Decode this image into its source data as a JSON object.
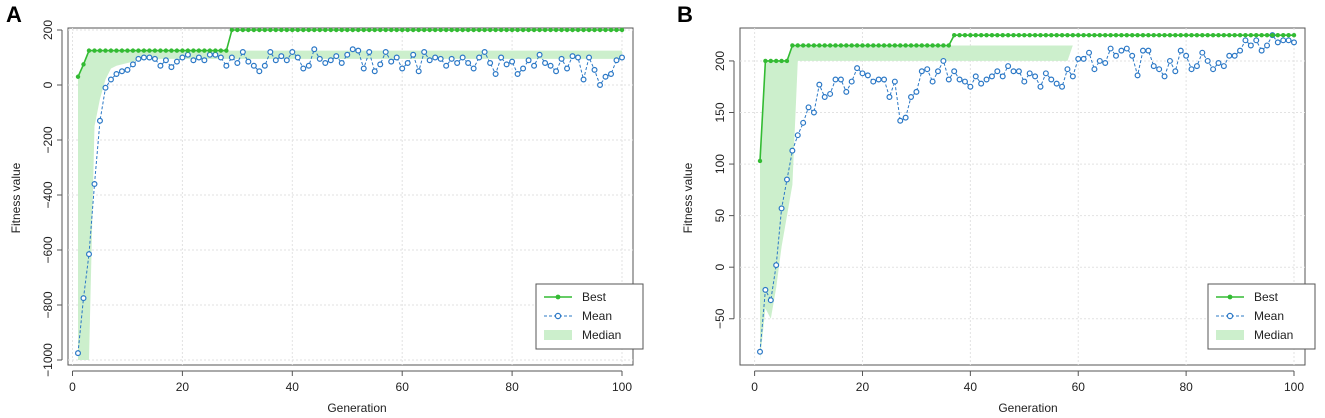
{
  "chart_data": [
    {
      "panel": "A",
      "type": "line",
      "xlabel": "Generation",
      "ylabel": "Fitness value",
      "xlim": [
        1,
        100
      ],
      "ylim": [
        -1000,
        200
      ],
      "xticks": [
        0,
        20,
        40,
        60,
        80,
        100
      ],
      "yticks": [
        -1000,
        -800,
        -600,
        -400,
        -200,
        0,
        200
      ],
      "grid": true,
      "legend_position": "bottom-right",
      "legend": [
        "Best",
        "Mean",
        "Median"
      ],
      "colors": {
        "best": "#33bb33",
        "mean": "#2b78c6",
        "median_fill": "#ccefcc"
      },
      "series": [
        {
          "name": "Best",
          "values": [
            30,
            75,
            125,
            125,
            125,
            125,
            125,
            125,
            125,
            125,
            125,
            125,
            125,
            125,
            125,
            125,
            125,
            125,
            125,
            125,
            125,
            125,
            125,
            125,
            125,
            125,
            125,
            125,
            200,
            200,
            200,
            200,
            200,
            200,
            200,
            200,
            200,
            200,
            200,
            200,
            200,
            200,
            200,
            200,
            200,
            200,
            200,
            200,
            200,
            200,
            200,
            200,
            200,
            200,
            200,
            200,
            200,
            200,
            200,
            200,
            200,
            200,
            200,
            200,
            200,
            200,
            200,
            200,
            200,
            200,
            200,
            200,
            200,
            200,
            200,
            200,
            200,
            200,
            200,
            200,
            200,
            200,
            200,
            200,
            200,
            200,
            200,
            200,
            200,
            200,
            200,
            200,
            200,
            200,
            200,
            200,
            200,
            200,
            200,
            200
          ]
        },
        {
          "name": "Mean",
          "values": [
            -975,
            -775,
            -615,
            -360,
            -130,
            -10,
            20,
            40,
            50,
            55,
            75,
            95,
            100,
            100,
            95,
            70,
            90,
            65,
            85,
            100,
            110,
            90,
            100,
            90,
            110,
            110,
            100,
            70,
            100,
            80,
            120,
            85,
            70,
            50,
            70,
            120,
            90,
            105,
            90,
            120,
            100,
            60,
            70,
            130,
            95,
            80,
            90,
            105,
            80,
            110,
            130,
            125,
            60,
            120,
            50,
            75,
            120,
            85,
            100,
            60,
            80,
            110,
            50,
            120,
            90,
            100,
            95,
            70,
            95,
            80,
            100,
            80,
            60,
            100,
            120,
            80,
            40,
            100,
            75,
            85,
            40,
            60,
            90,
            70,
            110,
            80,
            70,
            50,
            95,
            60,
            105,
            100,
            20,
            100,
            55,
            0,
            30,
            40,
            90,
            100
          ]
        },
        {
          "name": "Median",
          "band_low": [
            -1000,
            -1000,
            -1000,
            -150,
            -50,
            20,
            60,
            70,
            75,
            80,
            85,
            90,
            95,
            95,
            95,
            95,
            95,
            95,
            95,
            95,
            95,
            95,
            95,
            95,
            95,
            95,
            95,
            95,
            95,
            95,
            95,
            95,
            95,
            95,
            95,
            95,
            95,
            95,
            95,
            95,
            95,
            95,
            95,
            95,
            95,
            95,
            95,
            95,
            95,
            95,
            95,
            95,
            95,
            95,
            95,
            95,
            95,
            95,
            95,
            95,
            95,
            95,
            95,
            95,
            95,
            95,
            95,
            95,
            95,
            95,
            95,
            95,
            95,
            95,
            95,
            95,
            95,
            95,
            95,
            95,
            95,
            95,
            95,
            95,
            95,
            95,
            95,
            95,
            95,
            95,
            95,
            95,
            95,
            95,
            95,
            95,
            95,
            95,
            95,
            95
          ],
          "band_high": [
            30,
            75,
            125,
            125,
            125,
            125,
            125,
            125,
            125,
            125,
            125,
            125,
            125,
            125,
            125,
            125,
            125,
            125,
            125,
            125,
            125,
            125,
            125,
            125,
            125,
            125,
            125,
            125,
            125,
            125,
            125,
            125,
            125,
            125,
            125,
            125,
            125,
            125,
            125,
            125,
            125,
            125,
            125,
            125,
            125,
            125,
            125,
            125,
            125,
            125,
            125,
            125,
            125,
            125,
            125,
            125,
            125,
            125,
            125,
            125,
            125,
            125,
            125,
            125,
            125,
            125,
            125,
            125,
            125,
            125,
            125,
            125,
            125,
            125,
            125,
            125,
            125,
            125,
            125,
            125,
            125,
            125,
            125,
            125,
            125,
            125,
            125,
            125,
            125,
            125,
            125,
            125,
            125,
            125,
            125,
            125,
            125,
            125,
            125,
            125
          ]
        }
      ]
    },
    {
      "panel": "B",
      "type": "line",
      "xlabel": "Generation",
      "ylabel": "Fitness value",
      "xlim": [
        1,
        100
      ],
      "ylim": [
        -90,
        230
      ],
      "xticks": [
        0,
        20,
        40,
        60,
        80,
        100
      ],
      "yticks": [
        -50,
        0,
        50,
        100,
        150,
        200
      ],
      "grid": true,
      "legend_position": "bottom-right",
      "legend": [
        "Best",
        "Mean",
        "Median"
      ],
      "colors": {
        "best": "#33bb33",
        "mean": "#2b78c6",
        "median_fill": "#ccefcc"
      },
      "series": [
        {
          "name": "Best",
          "values": [
            103,
            200,
            200,
            200,
            200,
            200,
            215,
            215,
            215,
            215,
            215,
            215,
            215,
            215,
            215,
            215,
            215,
            215,
            215,
            215,
            215,
            215,
            215,
            215,
            215,
            215,
            215,
            215,
            215,
            215,
            215,
            215,
            215,
            215,
            215,
            215,
            225,
            225,
            225,
            225,
            225,
            225,
            225,
            225,
            225,
            225,
            225,
            225,
            225,
            225,
            225,
            225,
            225,
            225,
            225,
            225,
            225,
            225,
            225,
            225,
            225,
            225,
            225,
            225,
            225,
            225,
            225,
            225,
            225,
            225,
            225,
            225,
            225,
            225,
            225,
            225,
            225,
            225,
            225,
            225,
            225,
            225,
            225,
            225,
            225,
            225,
            225,
            225,
            225,
            225,
            225,
            225,
            225,
            225,
            225,
            225,
            225,
            225,
            225,
            225
          ]
        },
        {
          "name": "Mean",
          "values": [
            -82,
            -22,
            -32,
            2,
            57,
            85,
            113,
            128,
            140,
            155,
            150,
            177,
            165,
            168,
            182,
            182,
            170,
            180,
            193,
            188,
            186,
            180,
            182,
            182,
            165,
            180,
            142,
            145,
            165,
            170,
            190,
            192,
            180,
            190,
            200,
            182,
            190,
            182,
            180,
            175,
            185,
            178,
            182,
            185,
            190,
            185,
            195,
            190,
            190,
            180,
            188,
            185,
            175,
            188,
            182,
            178,
            175,
            192,
            185,
            202,
            202,
            208,
            192,
            200,
            198,
            212,
            205,
            210,
            212,
            205,
            186,
            210,
            210,
            195,
            192,
            185,
            200,
            190,
            210,
            205,
            192,
            195,
            208,
            200,
            192,
            198,
            195,
            205,
            205,
            210,
            220,
            215,
            220,
            210,
            215,
            225,
            218,
            220,
            220,
            218
          ]
        },
        {
          "name": "Median",
          "band_low": [
            -90,
            -40,
            -50,
            -20,
            20,
            50,
            80,
            200,
            200,
            200,
            200,
            200,
            200,
            200,
            200,
            200,
            200,
            200,
            200,
            200,
            200,
            200,
            200,
            200,
            200,
            200,
            200,
            200,
            200,
            200,
            200,
            200,
            200,
            200,
            200,
            200,
            200,
            200,
            200,
            200,
            200,
            200,
            200,
            200,
            200,
            200,
            200,
            200,
            200,
            200,
            200,
            200,
            200,
            200,
            200,
            200,
            200,
            200,
            215,
            215,
            215,
            215,
            215,
            215,
            215,
            215,
            215,
            215,
            215,
            215,
            215,
            215,
            215,
            215,
            215,
            215,
            215,
            215,
            215,
            215,
            215,
            215,
            215,
            215,
            215,
            215,
            215,
            215,
            215,
            215,
            215,
            215,
            215,
            215,
            215,
            215,
            215,
            215,
            215,
            215
          ],
          "band_high": [
            103,
            200,
            200,
            200,
            200,
            200,
            215,
            215,
            215,
            215,
            215,
            215,
            215,
            215,
            215,
            215,
            215,
            215,
            215,
            215,
            215,
            215,
            215,
            215,
            215,
            215,
            215,
            215,
            215,
            215,
            215,
            215,
            215,
            215,
            215,
            215,
            215,
            215,
            215,
            215,
            215,
            215,
            215,
            215,
            215,
            215,
            215,
            215,
            215,
            215,
            215,
            215,
            215,
            215,
            215,
            215,
            215,
            215,
            215,
            215,
            215,
            215,
            215,
            215,
            215,
            215,
            215,
            215,
            215,
            215,
            215,
            215,
            215,
            215,
            215,
            215,
            215,
            215,
            215,
            215,
            215,
            215,
            215,
            215,
            215,
            215,
            215,
            215,
            215,
            215,
            215,
            215,
            215,
            215,
            215,
            215,
            215,
            215,
            215,
            215
          ]
        }
      ]
    }
  ]
}
